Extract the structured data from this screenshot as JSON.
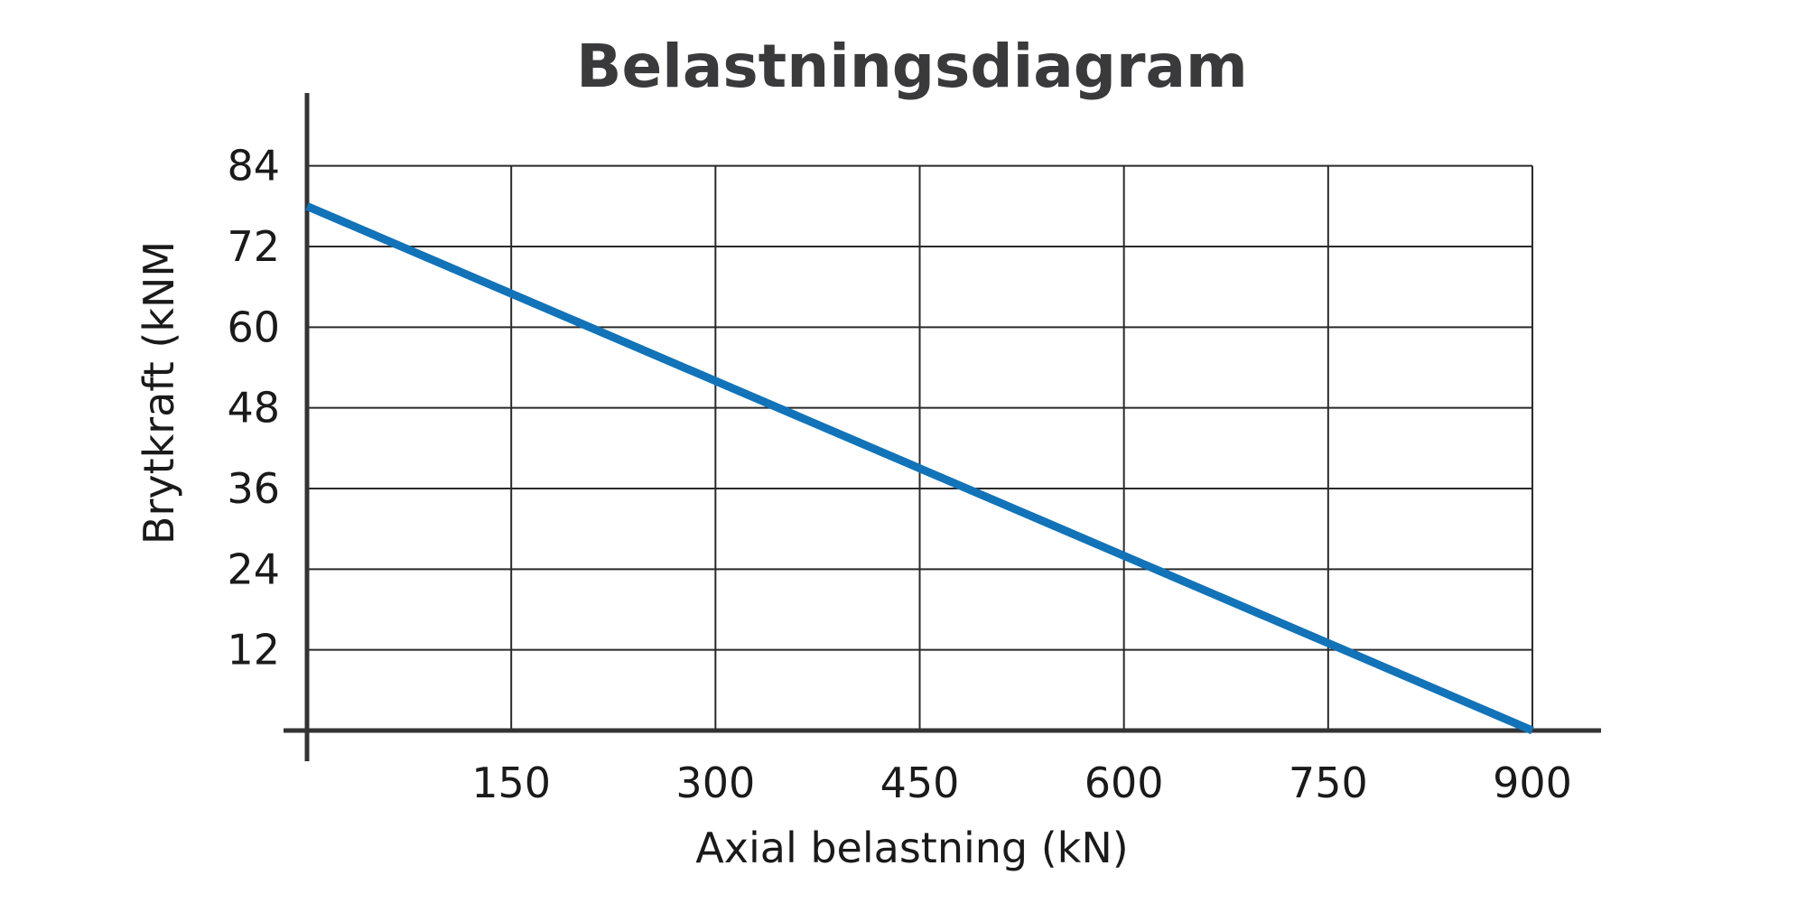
{
  "chart_data": {
    "type": "line",
    "title": "Belastningsdiagram",
    "xlabel": "Axial belastning (kN)",
    "ylabel": "Brytkraft (kNM",
    "xlim": [
      0,
      900
    ],
    "ylim": [
      0,
      90
    ],
    "x_ticks": [
      150,
      300,
      450,
      600,
      750,
      900
    ],
    "y_ticks": [
      12,
      24,
      36,
      48,
      60,
      72,
      84
    ],
    "grid": true,
    "series": [
      {
        "color": "#1273b8",
        "x": [
          0,
          900
        ],
        "y": [
          78,
          0
        ]
      }
    ]
  }
}
